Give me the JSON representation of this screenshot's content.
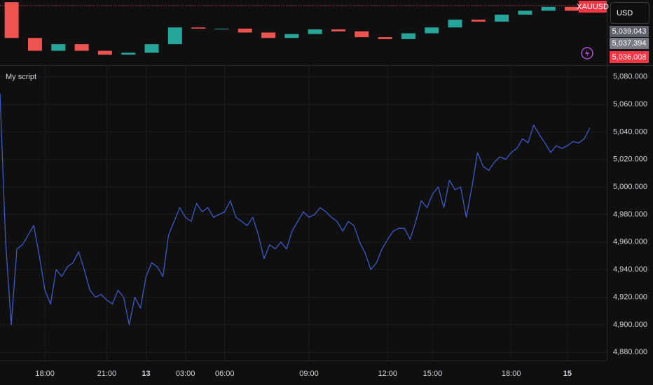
{
  "ui": {
    "symbol": "XAUUSD",
    "currency": "USD",
    "price_labels": [
      "5,039.043",
      "5,037.394",
      "5,036.008"
    ]
  },
  "chart_data": [
    {
      "type": "line",
      "title": "My script",
      "series": [
        {
          "color": "#3f5fd6",
          "values": [
            5068,
            4960,
            4900,
            4955,
            4958,
            4965,
            4972,
            4950,
            4925,
            4915,
            4940,
            4935,
            4942,
            4945,
            4953,
            4940,
            4925,
            4920,
            4922,
            4918,
            4915,
            4925,
            4920,
            4900,
            4920,
            4912,
            4935,
            4945,
            4942,
            4935,
            4965,
            4975,
            4985,
            4978,
            4975,
            4988,
            4982,
            4985,
            4978,
            4980,
            4982,
            4990,
            4978,
            4975,
            4972,
            4978,
            4965,
            4948,
            4958,
            4955,
            4960,
            4955,
            4968,
            4975,
            4982,
            4978,
            4980,
            4985,
            4982,
            4978,
            4975,
            4968,
            4975,
            4972,
            4960,
            4952,
            4940,
            4945,
            4955,
            4962,
            4968,
            4970,
            4970,
            4962,
            4975,
            4990,
            4985,
            4995,
            5000,
            4985,
            5005,
            4998,
            5000,
            4978,
            5000,
            5025,
            5015,
            5012,
            5018,
            5022,
            5020,
            5025,
            5028,
            5035,
            5032,
            5045,
            5038,
            5032,
            5025,
            5030,
            5028,
            5030,
            5033,
            5032,
            5035,
            5043
          ]
        }
      ],
      "xlim": [
        0,
        108
      ],
      "xticks": [
        {
          "value": 8,
          "label": "18:00"
        },
        {
          "value": 19,
          "label": "21:00"
        },
        {
          "value": 26,
          "label": "13"
        },
        {
          "value": 33,
          "label": "03:00"
        },
        {
          "value": 40,
          "label": "06:00"
        },
        {
          "value": 55,
          "label": "09:00"
        },
        {
          "value": 69,
          "label": "12:00"
        },
        {
          "value": 77,
          "label": "15:00"
        },
        {
          "value": 91,
          "label": "18:00"
        },
        {
          "value": 101,
          "label": "15"
        }
      ],
      "ylim": [
        4874,
        5088
      ],
      "yticks": [
        {
          "value": 4880,
          "label": "4,880.000"
        },
        {
          "value": 4900,
          "label": "4,900.000"
        },
        {
          "value": 4920,
          "label": "4,920.000"
        },
        {
          "value": 4940,
          "label": "4,940.000"
        },
        {
          "value": 4960,
          "label": "4,960.000"
        },
        {
          "value": 4980,
          "label": "4,980.000"
        },
        {
          "value": 5000,
          "label": "5,000.000"
        },
        {
          "value": 5020,
          "label": "5,020.000"
        },
        {
          "value": 5040,
          "label": "5,040.000"
        },
        {
          "value": 5060,
          "label": "5,060.000"
        },
        {
          "value": 5080,
          "label": "5,080.000"
        }
      ],
      "grid": true
    },
    {
      "type": "candlestick",
      "open": [
        5050,
        4958,
        4925,
        4942,
        4925,
        4915,
        4920,
        4942,
        4985,
        4982,
        4982,
        4972,
        4958,
        4968,
        4980,
        4975,
        4960,
        4955,
        4970,
        4985,
        5005,
        5000,
        5018,
        5028,
        5038,
        5028
      ],
      "close": [
        4958,
        4925,
        4942,
        4925,
        4915,
        4920,
        4942,
        4985,
        4982,
        4982,
        4972,
        4958,
        4968,
        4980,
        4975,
        4960,
        4955,
        4970,
        4985,
        5005,
        5000,
        5018,
        5028,
        5038,
        5028,
        5035
      ],
      "up_color": "#26a69a",
      "down_color": "#ef5350",
      "ylim": [
        4890,
        5052
      ]
    }
  ]
}
